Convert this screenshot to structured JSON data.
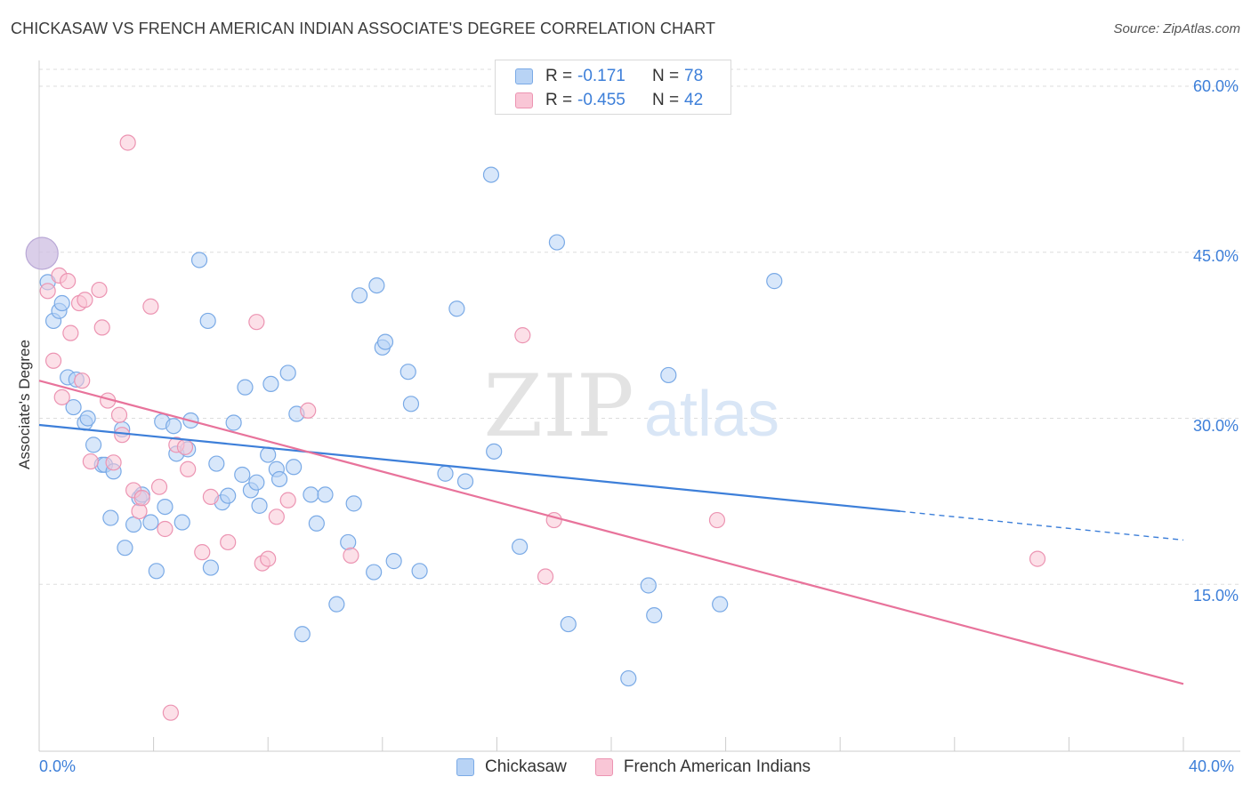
{
  "title": "CHICKASAW VS FRENCH AMERICAN INDIAN ASSOCIATE'S DEGREE CORRELATION CHART",
  "source": "Source: ZipAtlas.com",
  "watermark": {
    "zip": "ZIP",
    "atlas": "atlas"
  },
  "legend": {
    "r_label": "R =",
    "n_label": "N =",
    "series": [
      {
        "name": "Chickasaw",
        "r": "-0.171",
        "n": "78",
        "fill": "#b8d3f5",
        "stroke": "#7aaae6"
      },
      {
        "name": "French American Indians",
        "r": "-0.455",
        "n": "42",
        "fill": "#f9c6d6",
        "stroke": "#ec94b2"
      }
    ]
  },
  "chart_data": {
    "type": "scatter",
    "title": "CHICKASAW VS FRENCH AMERICAN INDIAN ASSOCIATE'S DEGREE CORRELATION CHART",
    "xlabel": "",
    "ylabel": "Associate's Degree",
    "xlim": [
      0,
      40
    ],
    "ylim": [
      0,
      60
    ],
    "x_tick_labels": [
      "0.0%",
      "40.0%"
    ],
    "y_ticks": [
      15,
      30,
      45,
      60
    ],
    "y_tick_labels": [
      "15.0%",
      "30.0%",
      "45.0%",
      "60.0%"
    ],
    "grid": "horizontal dashed",
    "legend_position": "top-center",
    "series": [
      {
        "name": "Chickasaw",
        "color": "#3d7fd9",
        "points": [
          [
            0.3,
            42.3
          ],
          [
            0.5,
            38.8
          ],
          [
            0.7,
            39.7
          ],
          [
            0.8,
            40.4
          ],
          [
            1.0,
            33.7
          ],
          [
            1.3,
            33.5
          ],
          [
            1.2,
            31.0
          ],
          [
            1.6,
            29.6
          ],
          [
            1.7,
            30.0
          ],
          [
            1.9,
            27.6
          ],
          [
            2.2,
            25.8
          ],
          [
            2.3,
            25.8
          ],
          [
            2.6,
            25.2
          ],
          [
            2.9,
            29.0
          ],
          [
            3.0,
            18.3
          ],
          [
            2.5,
            21.0
          ],
          [
            3.3,
            20.4
          ],
          [
            3.5,
            22.8
          ],
          [
            3.6,
            23.1
          ],
          [
            3.9,
            20.6
          ],
          [
            4.1,
            16.2
          ],
          [
            4.3,
            29.7
          ],
          [
            4.4,
            22.0
          ],
          [
            4.7,
            29.3
          ],
          [
            4.8,
            26.8
          ],
          [
            5.0,
            20.6
          ],
          [
            5.2,
            27.2
          ],
          [
            5.3,
            29.8
          ],
          [
            5.6,
            44.3
          ],
          [
            5.9,
            38.8
          ],
          [
            6.0,
            16.5
          ],
          [
            6.2,
            25.9
          ],
          [
            6.4,
            22.4
          ],
          [
            6.6,
            23.0
          ],
          [
            6.8,
            29.6
          ],
          [
            7.1,
            24.9
          ],
          [
            7.2,
            32.8
          ],
          [
            7.4,
            23.5
          ],
          [
            7.6,
            24.2
          ],
          [
            7.7,
            22.1
          ],
          [
            8.0,
            26.7
          ],
          [
            8.1,
            33.1
          ],
          [
            8.3,
            25.4
          ],
          [
            8.4,
            24.5
          ],
          [
            8.7,
            34.1
          ],
          [
            8.9,
            25.6
          ],
          [
            9.0,
            30.4
          ],
          [
            9.2,
            10.5
          ],
          [
            9.5,
            23.1
          ],
          [
            9.7,
            20.5
          ],
          [
            10.0,
            23.1
          ],
          [
            10.4,
            13.2
          ],
          [
            10.8,
            18.8
          ],
          [
            11.0,
            22.3
          ],
          [
            11.2,
            41.1
          ],
          [
            11.7,
            16.1
          ],
          [
            11.8,
            42.0
          ],
          [
            12.0,
            36.4
          ],
          [
            12.1,
            36.9
          ],
          [
            12.4,
            17.1
          ],
          [
            12.9,
            34.2
          ],
          [
            13.0,
            31.3
          ],
          [
            13.3,
            16.2
          ],
          [
            14.2,
            25.0
          ],
          [
            14.6,
            39.9
          ],
          [
            14.9,
            24.3
          ],
          [
            15.8,
            52.0
          ],
          [
            15.9,
            27.0
          ],
          [
            16.8,
            18.4
          ],
          [
            18.1,
            45.9
          ],
          [
            18.5,
            11.4
          ],
          [
            20.6,
            6.5
          ],
          [
            21.3,
            14.9
          ],
          [
            21.5,
            12.2
          ],
          [
            22.0,
            33.9
          ],
          [
            23.8,
            13.2
          ],
          [
            25.7,
            42.4
          ],
          [
            0.1,
            44.9
          ]
        ]
      },
      {
        "name": "French American Indians",
        "color": "#e8739b",
        "points": [
          [
            0.3,
            41.5
          ],
          [
            0.5,
            35.2
          ],
          [
            0.7,
            42.9
          ],
          [
            0.8,
            31.9
          ],
          [
            1.0,
            42.4
          ],
          [
            1.1,
            37.7
          ],
          [
            1.4,
            40.4
          ],
          [
            1.5,
            33.4
          ],
          [
            1.6,
            40.7
          ],
          [
            1.8,
            26.1
          ],
          [
            2.1,
            41.6
          ],
          [
            2.2,
            38.2
          ],
          [
            2.4,
            31.6
          ],
          [
            2.6,
            26.0
          ],
          [
            2.8,
            30.3
          ],
          [
            2.9,
            28.5
          ],
          [
            3.1,
            54.9
          ],
          [
            3.3,
            23.5
          ],
          [
            3.5,
            21.6
          ],
          [
            3.6,
            22.8
          ],
          [
            3.9,
            40.1
          ],
          [
            4.2,
            23.8
          ],
          [
            4.4,
            20.0
          ],
          [
            4.6,
            3.4
          ],
          [
            4.8,
            27.6
          ],
          [
            5.1,
            27.4
          ],
          [
            5.2,
            25.4
          ],
          [
            5.7,
            17.9
          ],
          [
            6.0,
            22.9
          ],
          [
            6.6,
            18.8
          ],
          [
            7.6,
            38.7
          ],
          [
            7.8,
            16.9
          ],
          [
            8.0,
            17.3
          ],
          [
            8.3,
            21.1
          ],
          [
            8.7,
            22.6
          ],
          [
            9.4,
            30.7
          ],
          [
            10.9,
            17.6
          ],
          [
            16.9,
            37.5
          ],
          [
            17.7,
            15.7
          ],
          [
            18.0,
            20.8
          ],
          [
            23.7,
            20.8
          ],
          [
            34.9,
            17.3
          ]
        ]
      }
    ],
    "trend_lines": [
      {
        "series": "Chickasaw",
        "x0": 0,
        "y0": 29.4,
        "x1": 30.1,
        "y1": 21.6,
        "dashed_to_x": 40,
        "dashed_to_y": 19.0
      },
      {
        "series": "French American Indians",
        "x0": 0,
        "y0": 33.4,
        "x1": 40,
        "y1": 6.0
      }
    ]
  }
}
